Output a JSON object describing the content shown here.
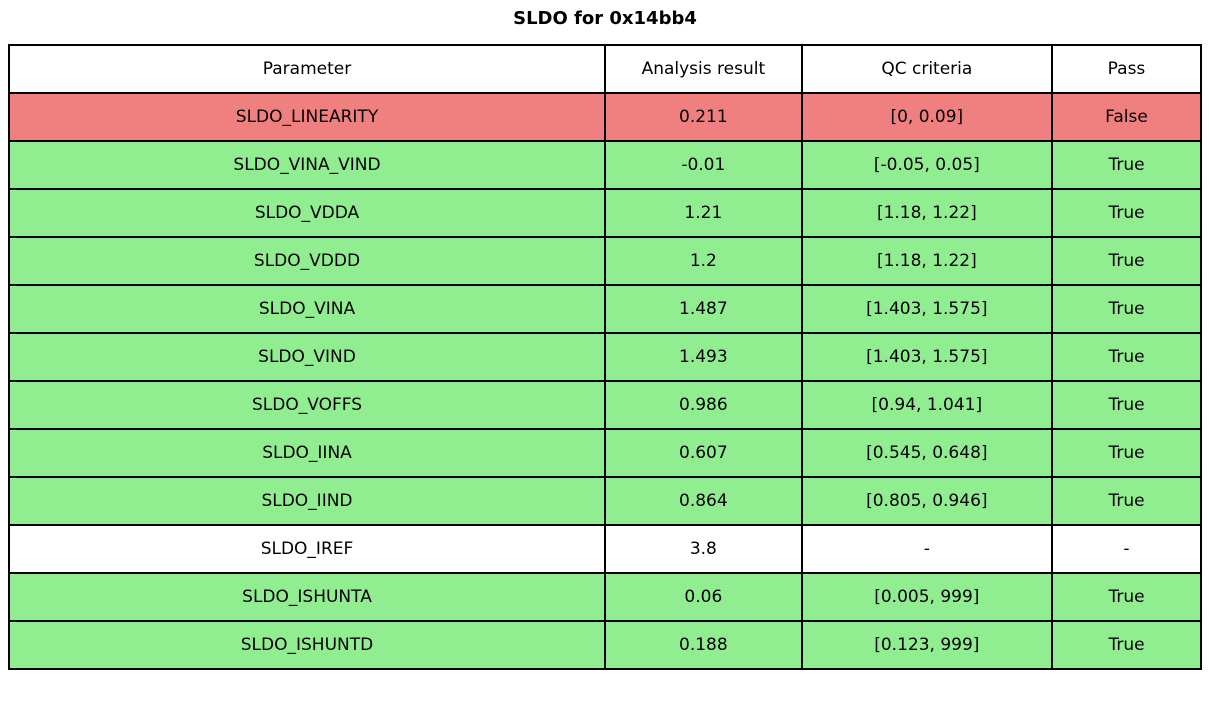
{
  "title": "SLDO for 0x14bb4",
  "columns": [
    "Parameter",
    "Analysis result",
    "QC criteria",
    "Pass"
  ],
  "column_widths_pct": [
    50,
    16.5,
    21,
    12.5
  ],
  "colors": {
    "fail": "#f08080",
    "pass": "#90ee90",
    "neutral": "#ffffff",
    "border": "#000000",
    "text": "#000000"
  },
  "rows": [
    {
      "parameter": "SLDO_LINEARITY",
      "analysis_result": "0.211",
      "qc_criteria": "[0, 0.09]",
      "pass": "False",
      "status": "fail"
    },
    {
      "parameter": "SLDO_VINA_VIND",
      "analysis_result": "-0.01",
      "qc_criteria": "[-0.05, 0.05]",
      "pass": "True",
      "status": "pass"
    },
    {
      "parameter": "SLDO_VDDA",
      "analysis_result": "1.21",
      "qc_criteria": "[1.18, 1.22]",
      "pass": "True",
      "status": "pass"
    },
    {
      "parameter": "SLDO_VDDD",
      "analysis_result": "1.2",
      "qc_criteria": "[1.18, 1.22]",
      "pass": "True",
      "status": "pass"
    },
    {
      "parameter": "SLDO_VINA",
      "analysis_result": "1.487",
      "qc_criteria": "[1.403, 1.575]",
      "pass": "True",
      "status": "pass"
    },
    {
      "parameter": "SLDO_VIND",
      "analysis_result": "1.493",
      "qc_criteria": "[1.403, 1.575]",
      "pass": "True",
      "status": "pass"
    },
    {
      "parameter": "SLDO_VOFFS",
      "analysis_result": "0.986",
      "qc_criteria": "[0.94, 1.041]",
      "pass": "True",
      "status": "pass"
    },
    {
      "parameter": "SLDO_IINA",
      "analysis_result": "0.607",
      "qc_criteria": "[0.545, 0.648]",
      "pass": "True",
      "status": "pass"
    },
    {
      "parameter": "SLDO_IIND",
      "analysis_result": "0.864",
      "qc_criteria": "[0.805, 0.946]",
      "pass": "True",
      "status": "pass"
    },
    {
      "parameter": "SLDO_IREF",
      "analysis_result": "3.8",
      "qc_criteria": "-",
      "pass": "-",
      "status": "neutral"
    },
    {
      "parameter": "SLDO_ISHUNTA",
      "analysis_result": "0.06",
      "qc_criteria": "[0.005, 999]",
      "pass": "True",
      "status": "pass"
    },
    {
      "parameter": "SLDO_ISHUNTD",
      "analysis_result": "0.188",
      "qc_criteria": "[0.123, 999]",
      "pass": "True",
      "status": "pass"
    }
  ],
  "chart_data": {
    "type": "table",
    "title": "SLDO for 0x14bb4",
    "columns": [
      "Parameter",
      "Analysis result",
      "QC criteria",
      "Pass"
    ],
    "rows": [
      [
        "SLDO_LINEARITY",
        "0.211",
        "[0, 0.09]",
        "False"
      ],
      [
        "SLDO_VINA_VIND",
        "-0.01",
        "[-0.05, 0.05]",
        "True"
      ],
      [
        "SLDO_VDDA",
        "1.21",
        "[1.18, 1.22]",
        "True"
      ],
      [
        "SLDO_VDDD",
        "1.2",
        "[1.18, 1.22]",
        "True"
      ],
      [
        "SLDO_VINA",
        "1.487",
        "[1.403, 1.575]",
        "True"
      ],
      [
        "SLDO_VIND",
        "1.493",
        "[1.403, 1.575]",
        "True"
      ],
      [
        "SLDO_VOFFS",
        "0.986",
        "[0.94, 1.041]",
        "True"
      ],
      [
        "SLDO_IINA",
        "0.607",
        "[0.545, 0.648]",
        "True"
      ],
      [
        "SLDO_IIND",
        "0.864",
        "[0.805, 0.946]",
        "True"
      ],
      [
        "SLDO_IREF",
        "3.8",
        "-",
        "-"
      ],
      [
        "SLDO_ISHUNTA",
        "0.06",
        "[0.005, 999]",
        "True"
      ],
      [
        "SLDO_ISHUNTD",
        "0.188",
        "[0.123, 999]",
        "True"
      ]
    ],
    "row_status_colors": [
      "fail",
      "pass",
      "pass",
      "pass",
      "pass",
      "pass",
      "pass",
      "pass",
      "pass",
      "neutral",
      "pass",
      "pass"
    ],
    "legend_position": "none",
    "grid": true
  }
}
